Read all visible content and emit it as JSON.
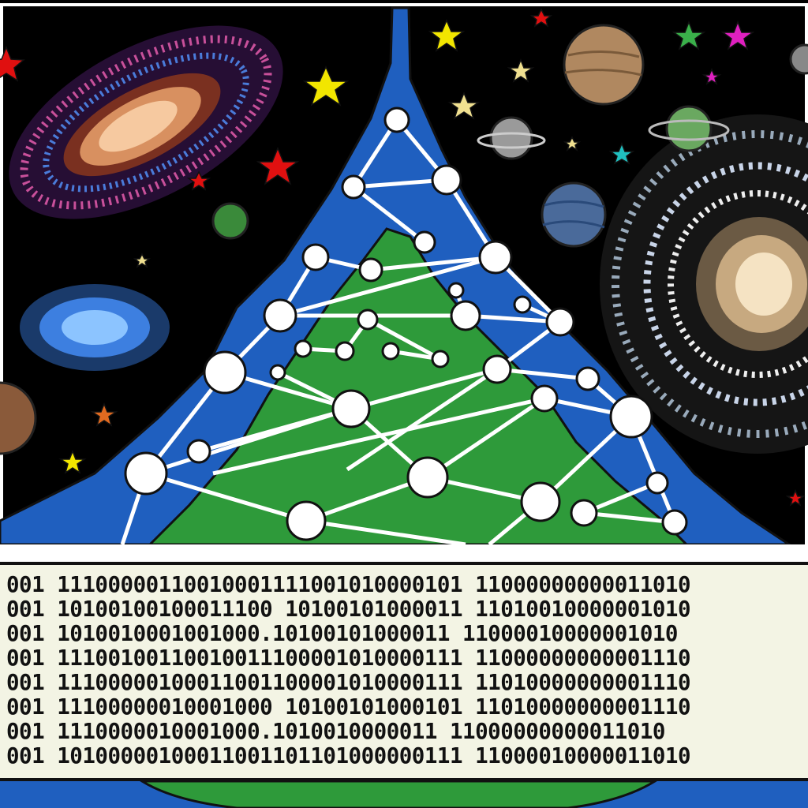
{
  "scene": {
    "colors": {
      "space": "#000000",
      "mountain_outer": "#1f5fbf",
      "mountain_inner": "#2e9a3a",
      "node": "#ffffff",
      "panel_bg": "#f3f4e4",
      "ground": "#1f5fbf"
    },
    "icons": [
      "spiral-galaxy",
      "elliptical-galaxy",
      "planets",
      "stars",
      "node-network",
      "mountain"
    ]
  },
  "binary": {
    "lines": [
      "001 11100000110010001111001010000101 11000000000011010",
      "001 10100100100011100 10100101000011 11010010000001010",
      "001 1010010001001000.10100101000011 11000010000001010",
      "001 11100100110010011100001010000111 11000000000001110",
      "001 11100000100011001100001010000111 11010000000001110",
      "001 11100000010001000 10100101000101 11010000000001110",
      "001 1110000010001000.1010010000011 11000000000011010",
      "001 10100000100011001101101000000111 11000010000011010"
    ]
  }
}
